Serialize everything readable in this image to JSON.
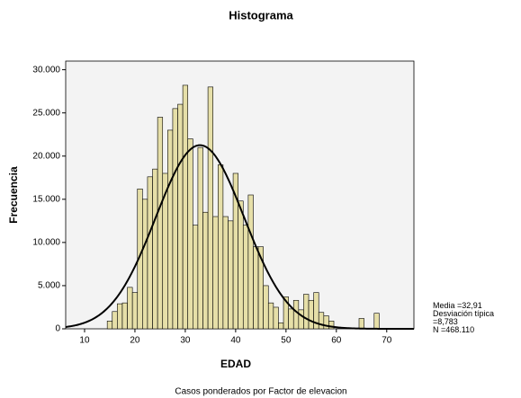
{
  "chart_data": {
    "type": "histogram",
    "title": "Histograma",
    "xlabel": "EDAD",
    "ylabel": "Frecuencia",
    "footnote": "Casos ponderados por Factor de elevacion",
    "bins": [
      14.5,
      15.5,
      16.5,
      17.5,
      18.5,
      19.5,
      20.5,
      21.5,
      22.5,
      23.5,
      24.5,
      25.5,
      26.5,
      27.5,
      28.5,
      29.5,
      30.5,
      31.5,
      32.5,
      33.5,
      34.5,
      35.5,
      36.5,
      37.5,
      38.5,
      39.5,
      40.5,
      41.5,
      42.5,
      43.5,
      44.5,
      45.5,
      46.5,
      47.5,
      48.5,
      49.5,
      50.5,
      51.5,
      52.5,
      53.5,
      54.5,
      55.5,
      56.5,
      57.5,
      58.5,
      59.5,
      60.5,
      61.5,
      62.5,
      63.5,
      64.5,
      65.5,
      66.5,
      67.5,
      68.5,
      69.5
    ],
    "counts": [
      900,
      2000,
      2900,
      3000,
      4800,
      4200,
      16200,
      15000,
      17600,
      18500,
      24500,
      18000,
      23000,
      25500,
      26000,
      28200,
      22000,
      12000,
      21000,
      13500,
      28000,
      13000,
      19000,
      13000,
      12500,
      18000,
      14800,
      12000,
      15500,
      9500,
      9500,
      5000,
      3000,
      2500,
      700,
      3700,
      2300,
      3300,
      2200,
      4000,
      3300,
      4200,
      1900,
      1500,
      900,
      0,
      0,
      0,
      0,
      0,
      1200,
      0,
      0,
      1800,
      0
    ],
    "color": "#e6dfa8",
    "normal_curve": {
      "mean": 32.91,
      "sd": 8.783,
      "n": 468110
    },
    "stats_labels": [
      "Media =32,91",
      "Desviación típica =8,783",
      "N =468.110"
    ],
    "xlim": [
      6.25,
      75.4
    ],
    "xticks": [
      10,
      20,
      30,
      40,
      50,
      60,
      70
    ],
    "ylim": [
      0,
      31000
    ],
    "yticks": [
      {
        "value": 0,
        "label": "0"
      },
      {
        "value": 5000,
        "label": "5.000"
      },
      {
        "value": 10000,
        "label": "10.000"
      },
      {
        "value": 15000,
        "label": "15.000"
      },
      {
        "value": 20000,
        "label": "20.000"
      },
      {
        "value": 25000,
        "label": "25.000"
      },
      {
        "value": 30000,
        "label": "30.000"
      }
    ]
  }
}
